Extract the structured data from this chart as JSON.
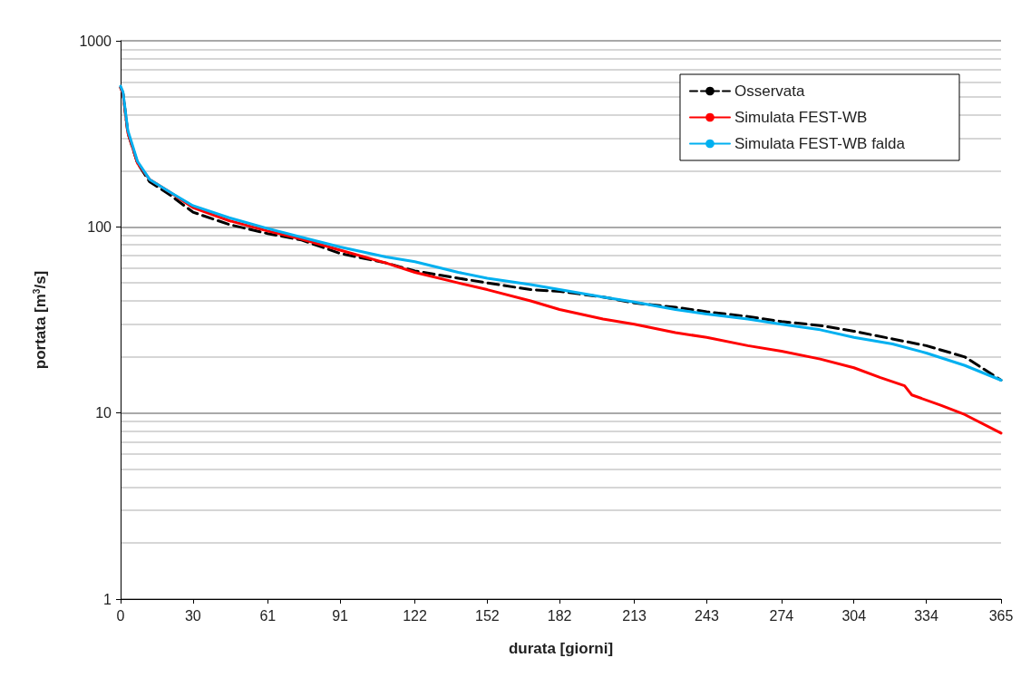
{
  "chart_data": {
    "type": "line",
    "xlabel": "durata [giorni]",
    "ylabel": "portata [m$^{3}$/s]",
    "xlim": [
      0,
      365
    ],
    "xticks": [
      0,
      30,
      61,
      91,
      122,
      152,
      182,
      213,
      243,
      274,
      304,
      334,
      365
    ],
    "ylim": [
      1,
      1000
    ],
    "yticks": [
      1,
      10,
      100,
      1000
    ],
    "log": "y",
    "grid": "y",
    "legend": "top right",
    "marker": "none",
    "series": [
      {
        "name": "Osservata",
        "color": "#000000",
        "line_style": "dashed",
        "x": [
          0,
          1,
          3,
          7,
          12,
          20,
          30,
          45,
          61,
          75,
          91,
          110,
          122,
          140,
          152,
          170,
          182,
          200,
          213,
          230,
          243,
          260,
          274,
          290,
          304,
          320,
          334,
          350,
          365
        ],
        "values": [
          560,
          520,
          320,
          220,
          175,
          150,
          120,
          103,
          92,
          85,
          72,
          64,
          58,
          53,
          50,
          46,
          45,
          42,
          39,
          37,
          35,
          33,
          31,
          29.5,
          27.5,
          25,
          23,
          20,
          15
        ]
      },
      {
        "name": "Simulata FEST-WB",
        "color": "#ff0000",
        "line_style": "solid",
        "x": [
          0,
          1,
          3,
          7,
          12,
          20,
          30,
          45,
          61,
          75,
          91,
          110,
          122,
          140,
          152,
          170,
          182,
          200,
          213,
          230,
          243,
          260,
          274,
          290,
          304,
          315,
          325,
          328,
          340,
          350,
          365
        ],
        "values": [
          560,
          520,
          320,
          220,
          180,
          155,
          127,
          108,
          95,
          86,
          75,
          64,
          57,
          50,
          46,
          40,
          36,
          32,
          30,
          27,
          25.5,
          23,
          21.5,
          19.5,
          17.5,
          15.5,
          14,
          12.5,
          11,
          9.8,
          7.8
        ]
      },
      {
        "name": "Simulata FEST-WB falda",
        "color": "#00b0f0",
        "line_style": "solid",
        "x": [
          0,
          1,
          3,
          7,
          12,
          20,
          30,
          45,
          61,
          75,
          91,
          110,
          122,
          140,
          152,
          170,
          182,
          200,
          213,
          230,
          243,
          260,
          274,
          290,
          304,
          320,
          334,
          350,
          365
        ],
        "values": [
          570,
          530,
          330,
          225,
          180,
          155,
          130,
          112,
          98,
          88,
          78,
          69,
          65,
          57,
          53,
          49,
          46,
          42,
          39.5,
          36,
          34,
          32,
          30,
          28,
          25.5,
          23.5,
          21,
          18,
          15
        ]
      }
    ]
  }
}
